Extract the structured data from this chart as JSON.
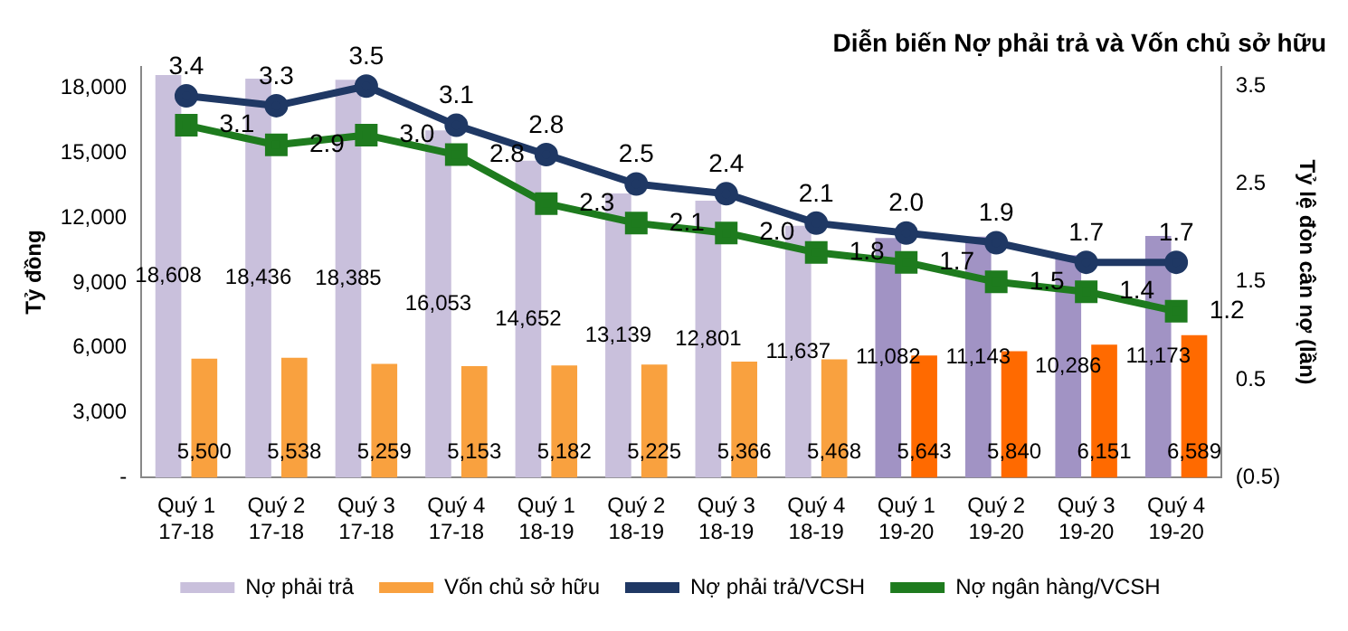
{
  "chart_data": {
    "type": "bar",
    "title": "Diễn biến Nợ phải trả và Vốn chủ sở hữu",
    "ylabel": "Tỷ đồng",
    "y2label": "Tỷ lệ đòn cân nợ (lần)",
    "categories": [
      "Quý 1\n17-18",
      "Quý 2\n17-18",
      "Quý 3\n17-18",
      "Quý 4\n17-18",
      "Quý 1\n18-19",
      "Quý 2\n18-19",
      "Quý 3\n18-19",
      "Quý 4\n18-19",
      "Quý 1\n19-20",
      "Quý 2\n19-20",
      "Quý 3\n19-20",
      "Quý 4\n19-20"
    ],
    "series": [
      {
        "name": "Nợ phải trả",
        "color": "#c9c0dc",
        "colors": [
          "#c9c0dc",
          "#c9c0dc",
          "#c9c0dc",
          "#c9c0dc",
          "#c9c0dc",
          "#c9c0dc",
          "#c9c0dc",
          "#c9c0dc",
          "#a193c4",
          "#a193c4",
          "#a193c4",
          "#a193c4"
        ],
        "values": [
          18608,
          18436,
          18385,
          16053,
          14652,
          13139,
          12801,
          11637,
          11082,
          11143,
          10286,
          11173
        ],
        "value_labels": [
          "18,608",
          "18,436",
          "18,385",
          "16,053",
          "14,652",
          "13,139",
          "12,801",
          "11,637",
          "11,082",
          "11,143",
          "10,286",
          "11,173"
        ]
      },
      {
        "name": "Vốn chủ sở hữu",
        "color": "#f9a13f",
        "colors": [
          "#f9a13f",
          "#f9a13f",
          "#f9a13f",
          "#f9a13f",
          "#f9a13f",
          "#f9a13f",
          "#f9a13f",
          "#f9a13f",
          "#ff6a00",
          "#ff6a00",
          "#ff6a00",
          "#ff6a00"
        ],
        "values": [
          5500,
          5538,
          5259,
          5153,
          5182,
          5225,
          5366,
          5468,
          5643,
          5840,
          6151,
          6589
        ],
        "value_labels": [
          "5,500",
          "5,538",
          "5,259",
          "5,153",
          "5,182",
          "5,225",
          "5,366",
          "5,468",
          "5,643",
          "5,840",
          "6,151",
          "6,589"
        ]
      },
      {
        "name": "Nợ phải trả/VCSH",
        "type": "line",
        "axis": "y2",
        "marker": "circle",
        "color": "#1f3864",
        "values": [
          3.4,
          3.3,
          3.5,
          3.1,
          2.8,
          2.5,
          2.4,
          2.1,
          2.0,
          1.9,
          1.7,
          1.7
        ],
        "value_labels": [
          "3.4",
          "3.3",
          "3.5",
          "3.1",
          "2.8",
          "2.5",
          "2.4",
          "2.1",
          "2.0",
          "1.9",
          "1.7",
          "1.7"
        ]
      },
      {
        "name": "Nợ ngân hàng/VCSH",
        "type": "line",
        "axis": "y2",
        "marker": "square",
        "color": "#1e7b1e",
        "values": [
          3.1,
          2.9,
          3.0,
          2.8,
          2.3,
          2.1,
          2.0,
          1.8,
          1.7,
          1.5,
          1.4,
          1.2
        ],
        "value_labels": [
          "3.1",
          "2.9",
          "3.0",
          "2.8",
          "2.3",
          "2.1",
          "2.0",
          "1.8",
          "1.7",
          "1.5",
          "1.4",
          "1.2"
        ]
      }
    ],
    "ylim": [
      0,
      19000
    ],
    "yticks": [
      {
        "value": 0,
        "label": "-"
      },
      {
        "value": 3000,
        "label": "3,000"
      },
      {
        "value": 6000,
        "label": "6,000"
      },
      {
        "value": 9000,
        "label": "9,000"
      },
      {
        "value": 12000,
        "label": "12,000"
      },
      {
        "value": 15000,
        "label": "15,000"
      },
      {
        "value": 18000,
        "label": "18,000"
      }
    ],
    "y2lim": [
      -0.5,
      3.7
    ],
    "y2ticks": [
      {
        "value": -0.5,
        "label": "(0.5)"
      },
      0.5,
      1.5,
      2.5,
      3.5
    ],
    "legend": "bottom",
    "grid": false
  }
}
